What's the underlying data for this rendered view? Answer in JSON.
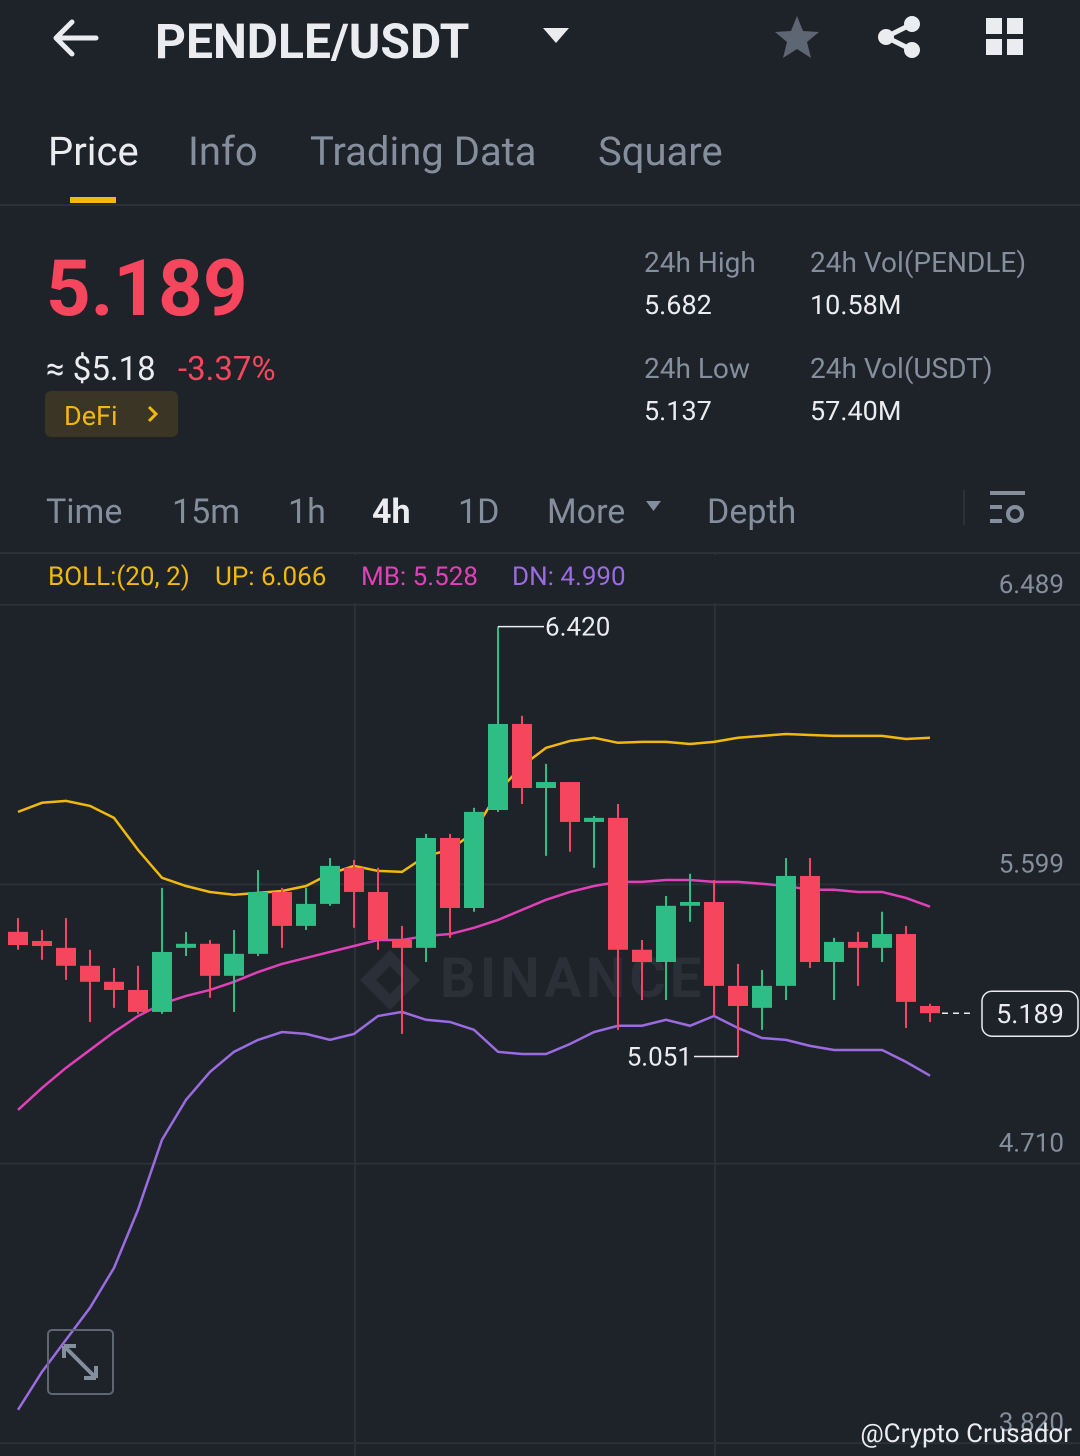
{
  "header": {
    "title": "PENDLE/USDT"
  },
  "tabs": [
    "Price",
    "Info",
    "Trading Data",
    "Square"
  ],
  "price": {
    "last": "5.189",
    "usd": "≈ $5.18",
    "change": "-3.37%",
    "tag": "DeFi"
  },
  "stats": [
    {
      "label": "24h High",
      "value": "5.682"
    },
    {
      "label": "24h Vol(PENDLE)",
      "value": "10.58M"
    },
    {
      "label": "24h Low",
      "value": "5.137"
    },
    {
      "label": "24h Vol(USDT)",
      "value": "57.40M"
    }
  ],
  "intervals": [
    "Time",
    "15m",
    "1h",
    "4h",
    "1D",
    "More",
    "Depth"
  ],
  "indicator": {
    "name": "BOLL:(20, 2)",
    "up": "UP: 6.066",
    "mb": "MB: 5.528",
    "dn": "DN: 4.990"
  },
  "chart": {
    "type": "candlestick",
    "ylim": [
      3.779,
      6.648
    ],
    "yticks": [
      6.489,
      5.599,
      {
        "value": 4.71,
        "label": "4.710"
      },
      {
        "value": 3.82,
        "label": "3.820"
      }
    ],
    "up_color": "#2ebd85",
    "down_color": "#f6465d",
    "open": [
      5.448,
      5.419,
      5.397,
      5.34,
      5.289,
      5.263,
      5.193,
      5.397,
      5.41,
      5.308,
      5.378,
      5.575,
      5.467,
      5.537,
      5.652,
      5.575,
      5.422,
      5.397,
      5.747,
      5.524,
      5.836,
      6.11,
      5.906,
      5.925,
      5.798,
      5.811,
      5.391,
      5.352,
      5.531,
      5.543,
      5.276,
      5.206,
      5.276,
      5.626,
      5.352,
      5.416,
      5.397,
      5.441,
      5.212
    ],
    "high": [
      5.492,
      5.454,
      5.492,
      5.391,
      5.333,
      5.34,
      5.588,
      5.448,
      5.422,
      5.454,
      5.645,
      5.588,
      5.588,
      5.683,
      5.677,
      5.652,
      5.467,
      5.76,
      5.76,
      5.843,
      6.42,
      6.136,
      5.983,
      5.925,
      5.817,
      5.855,
      5.422,
      5.562,
      5.633,
      5.613,
      5.346,
      5.327,
      5.683,
      5.683,
      5.429,
      5.448,
      5.512,
      5.467,
      5.219
    ],
    "low": [
      5.391,
      5.359,
      5.295,
      5.161,
      5.206,
      5.187,
      5.187,
      5.371,
      5.238,
      5.193,
      5.371,
      5.397,
      5.454,
      5.531,
      5.461,
      5.391,
      5.123,
      5.352,
      5.429,
      5.512,
      5.83,
      5.855,
      5.69,
      5.703,
      5.652,
      5.136,
      5.231,
      5.231,
      5.48,
      5.18,
      5.051,
      5.136,
      5.231,
      5.333,
      5.231,
      5.276,
      5.352,
      5.142,
      5.161
    ],
    "close": [
      5.406,
      5.403,
      5.34,
      5.289,
      5.263,
      5.193,
      5.384,
      5.41,
      5.308,
      5.378,
      5.575,
      5.467,
      5.537,
      5.658,
      5.575,
      5.422,
      5.397,
      5.747,
      5.524,
      5.83,
      6.11,
      5.906,
      5.925,
      5.798,
      5.811,
      5.391,
      5.352,
      5.531,
      5.543,
      5.276,
      5.212,
      5.276,
      5.626,
      5.352,
      5.416,
      5.397,
      5.441,
      5.225,
      5.189
    ],
    "bands": [
      {
        "key": "up",
        "color": "#f0b90b",
        "values": [
          5.83,
          5.859,
          5.865,
          5.849,
          5.811,
          5.709,
          5.62,
          5.594,
          5.575,
          5.566,
          5.572,
          5.578,
          5.594,
          5.633,
          5.658,
          5.642,
          5.639,
          5.69,
          5.709,
          5.766,
          5.894,
          5.976,
          6.034,
          6.056,
          6.066,
          6.05,
          6.053,
          6.053,
          6.046,
          6.053,
          6.066,
          6.072,
          6.078,
          6.075,
          6.072,
          6.072,
          6.072,
          6.062,
          6.066
        ]
      },
      {
        "key": "mb",
        "color": "#e040b8",
        "values": [
          4.881,
          4.951,
          5.015,
          5.072,
          5.129,
          5.18,
          5.219,
          5.244,
          5.263,
          5.289,
          5.32,
          5.346,
          5.365,
          5.384,
          5.403,
          5.422,
          5.422,
          5.435,
          5.441,
          5.461,
          5.486,
          5.518,
          5.55,
          5.575,
          5.594,
          5.607,
          5.607,
          5.613,
          5.613,
          5.607,
          5.607,
          5.601,
          5.594,
          5.582,
          5.582,
          5.575,
          5.575,
          5.556,
          5.528
        ]
      },
      {
        "key": "dn",
        "color": "#9b6be0",
        "values": [
          3.926,
          4.047,
          4.149,
          4.251,
          4.378,
          4.563,
          4.786,
          4.913,
          5.002,
          5.066,
          5.104,
          5.129,
          5.123,
          5.104,
          5.123,
          5.18,
          5.193,
          5.168,
          5.161,
          5.136,
          5.066,
          5.059,
          5.059,
          5.091,
          5.129,
          5.149,
          5.149,
          5.168,
          5.149,
          5.18,
          5.142,
          5.11,
          5.104,
          5.085,
          5.072,
          5.072,
          5.072,
          5.034,
          4.99
        ]
      }
    ],
    "max_label": "6.420",
    "max_index": 20,
    "min_label": "5.051",
    "min_index": 30,
    "last_label": "5.189",
    "watermark": "BINANCE"
  },
  "credit": "@Crypto Crusador"
}
